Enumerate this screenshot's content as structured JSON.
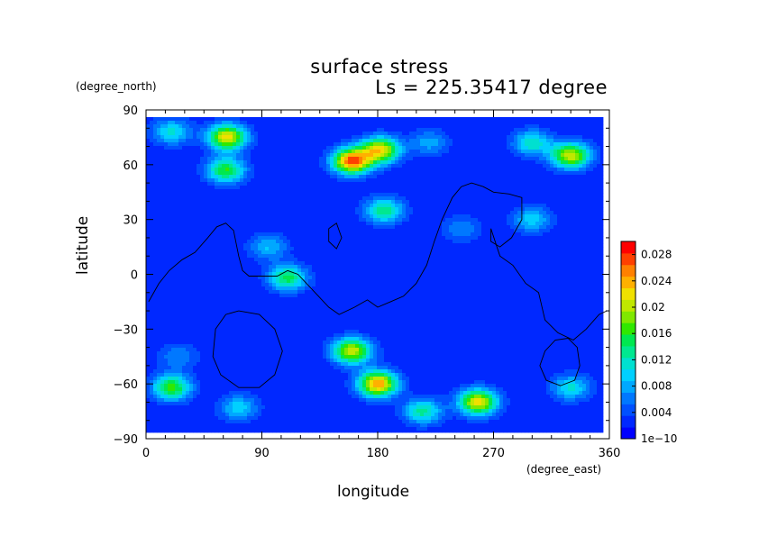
{
  "chart_data": {
    "type": "heatmap",
    "title": "surface stress",
    "subtitle": "Ls = 225.35417 degree",
    "xlabel": "longitude",
    "ylabel": "latitude",
    "x_unit": "(degree_east)",
    "y_unit": "(degree_north)",
    "xlim": [
      0,
      360
    ],
    "ylim": [
      -90,
      90
    ],
    "x_ticks": [
      0,
      90,
      180,
      270,
      360
    ],
    "x_tick_labels": [
      "0",
      "90",
      "180",
      "270",
      "360"
    ],
    "y_ticks": [
      90,
      60,
      30,
      0,
      -30,
      -60,
      -90
    ],
    "y_tick_labels": [
      "90",
      "60",
      "30",
      "0",
      "−30",
      "−60",
      "−90"
    ],
    "colorbar": {
      "min": 0,
      "max": 0.03,
      "labels": [
        "1e−10",
        "0.004",
        "0.008",
        "0.012",
        "0.016",
        "0.02",
        "0.024",
        "0.028"
      ],
      "label_values": [
        0,
        0.004,
        0.008,
        0.012,
        0.016,
        0.02,
        0.024,
        0.028
      ],
      "colors": [
        "#0000ff",
        "#0028ff",
        "#0050ff",
        "#0078ff",
        "#00a8ff",
        "#00d0ff",
        "#00e0d0",
        "#00e890",
        "#00e850",
        "#30e800",
        "#80e800",
        "#c0e800",
        "#f0e000",
        "#ffb000",
        "#ff8000",
        "#ff4000",
        "#ff0000"
      ]
    },
    "background_value": 0.002,
    "hotspots": [
      {
        "lon": 160,
        "lat": 62,
        "value": 0.027
      },
      {
        "lon": 182,
        "lat": 68,
        "value": 0.022
      },
      {
        "lon": 63,
        "lat": 75,
        "value": 0.022
      },
      {
        "lon": 330,
        "lat": 65,
        "value": 0.021
      },
      {
        "lon": 300,
        "lat": 72,
        "value": 0.012
      },
      {
        "lon": 20,
        "lat": 78,
        "value": 0.011
      },
      {
        "lon": 62,
        "lat": 57,
        "value": 0.016
      },
      {
        "lon": 185,
        "lat": 35,
        "value": 0.014
      },
      {
        "lon": 110,
        "lat": -2,
        "value": 0.015
      },
      {
        "lon": 95,
        "lat": 15,
        "value": 0.009
      },
      {
        "lon": 220,
        "lat": 72,
        "value": 0.008
      },
      {
        "lon": 160,
        "lat": -42,
        "value": 0.021
      },
      {
        "lon": 180,
        "lat": -60,
        "value": 0.025
      },
      {
        "lon": 258,
        "lat": -70,
        "value": 0.022
      },
      {
        "lon": 215,
        "lat": -75,
        "value": 0.013
      },
      {
        "lon": 20,
        "lat": -62,
        "value": 0.017
      },
      {
        "lon": 72,
        "lat": -73,
        "value": 0.01
      },
      {
        "lon": 330,
        "lat": -62,
        "value": 0.011
      },
      {
        "lon": 300,
        "lat": 30,
        "value": 0.01
      },
      {
        "lon": 245,
        "lat": 25,
        "value": 0.007
      },
      {
        "lon": 25,
        "lat": -45,
        "value": 0.007
      }
    ],
    "contours": [
      [
        [
          2,
          -15
        ],
        [
          10,
          -5
        ],
        [
          18,
          2
        ],
        [
          28,
          8
        ],
        [
          38,
          12
        ],
        [
          48,
          20
        ],
        [
          55,
          26
        ],
        [
          62,
          28
        ],
        [
          68,
          24
        ],
        [
          72,
          10
        ],
        [
          75,
          2
        ],
        [
          80,
          -1
        ],
        [
          92,
          -1
        ],
        [
          102,
          -1
        ],
        [
          110,
          2
        ],
        [
          118,
          0
        ],
        [
          126,
          -6
        ],
        [
          134,
          -12
        ],
        [
          142,
          -18
        ],
        [
          150,
          -22
        ],
        [
          162,
          -18
        ],
        [
          172,
          -14
        ],
        [
          180,
          -18
        ],
        [
          190,
          -15
        ],
        [
          200,
          -12
        ],
        [
          210,
          -5
        ],
        [
          218,
          5
        ],
        [
          224,
          18
        ],
        [
          230,
          30
        ],
        [
          238,
          42
        ],
        [
          245,
          48
        ],
        [
          253,
          50
        ],
        [
          262,
          48
        ],
        [
          270,
          45
        ],
        [
          282,
          44
        ],
        [
          292,
          42
        ],
        [
          292,
          30
        ],
        [
          284,
          20
        ],
        [
          275,
          15
        ],
        [
          268,
          18
        ],
        [
          268,
          25
        ],
        [
          275,
          10
        ],
        [
          285,
          5
        ],
        [
          295,
          -5
        ],
        [
          305,
          -10
        ],
        [
          310,
          -25
        ],
        [
          320,
          -32
        ],
        [
          332,
          -36
        ],
        [
          342,
          -30
        ],
        [
          352,
          -22
        ],
        [
          358,
          -20
        ]
      ],
      [
        [
          142,
          25
        ],
        [
          148,
          28
        ],
        [
          152,
          20
        ],
        [
          148,
          14
        ],
        [
          142,
          18
        ],
        [
          142,
          25
        ]
      ],
      [
        [
          72,
          -20
        ],
        [
          88,
          -22
        ],
        [
          100,
          -30
        ],
        [
          106,
          -42
        ],
        [
          100,
          -55
        ],
        [
          88,
          -62
        ],
        [
          72,
          -62
        ],
        [
          58,
          -55
        ],
        [
          52,
          -45
        ],
        [
          54,
          -30
        ],
        [
          62,
          -22
        ],
        [
          72,
          -20
        ]
      ],
      [
        [
          328,
          -35
        ],
        [
          335,
          -40
        ],
        [
          337,
          -50
        ],
        [
          333,
          -58
        ],
        [
          322,
          -61
        ],
        [
          311,
          -58
        ],
        [
          306,
          -50
        ],
        [
          310,
          -42
        ],
        [
          318,
          -36
        ],
        [
          328,
          -35
        ]
      ]
    ]
  }
}
